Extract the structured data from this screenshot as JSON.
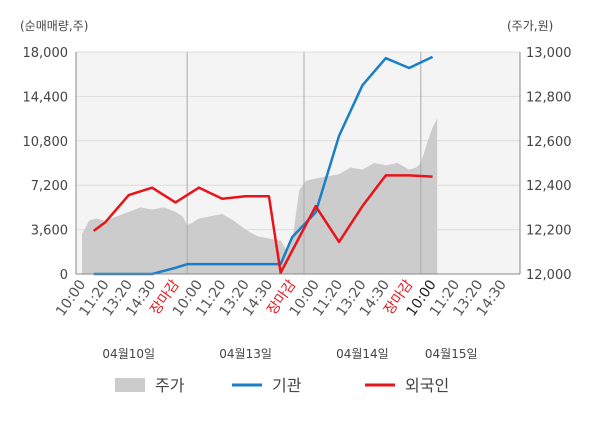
{
  "chart_data": {
    "type": "line",
    "left_axis": {
      "unit_label": "(순매매량,주)",
      "ylim": [
        0,
        18000
      ],
      "ticks": [
        0,
        3600,
        7200,
        10800,
        14400,
        18000
      ],
      "tick_labels": [
        "0",
        "3,600",
        "7,200",
        "10,800",
        "14,400",
        "18,000"
      ]
    },
    "right_axis": {
      "unit_label": "(주가,원)",
      "ylim": [
        12000,
        13000
      ],
      "ticks": [
        12000,
        12200,
        12400,
        12600,
        12800,
        13000
      ],
      "tick_labels": [
        "12,000",
        "12,200",
        "12,400",
        "12,600",
        "12,800",
        "13,000"
      ]
    },
    "x_tick_labels": [
      {
        "text": "10:00",
        "style": "normal"
      },
      {
        "text": "11:20",
        "style": "normal"
      },
      {
        "text": "13:20",
        "style": "normal"
      },
      {
        "text": "14:30",
        "style": "normal"
      },
      {
        "text": "장마감",
        "style": "red"
      },
      {
        "text": "10:00",
        "style": "normal"
      },
      {
        "text": "11:20",
        "style": "normal"
      },
      {
        "text": "13:20",
        "style": "normal"
      },
      {
        "text": "14:30",
        "style": "normal"
      },
      {
        "text": "장마감",
        "style": "red"
      },
      {
        "text": "10:00",
        "style": "normal"
      },
      {
        "text": "11:20",
        "style": "normal"
      },
      {
        "text": "13:20",
        "style": "normal"
      },
      {
        "text": "14:30",
        "style": "normal"
      },
      {
        "text": "장마감",
        "style": "red"
      },
      {
        "text": "10:00",
        "style": "dark"
      },
      {
        "text": "11:20",
        "style": "normal"
      },
      {
        "text": "13:20",
        "style": "normal"
      },
      {
        "text": "14:30",
        "style": "normal"
      }
    ],
    "date_labels": [
      {
        "text": "04월10일",
        "at_tick": 2
      },
      {
        "text": "04월13일",
        "at_tick": 7
      },
      {
        "text": "04월14일",
        "at_tick": 12
      },
      {
        "text": "04월15일",
        "at_tick": 15.8
      }
    ],
    "day_boundaries_at_tick": [
      4.5,
      9.5,
      14.5
    ],
    "series": [
      {
        "name": "기관",
        "axis": "left",
        "color": "#1a7fc6",
        "points": [
          [
            0.5,
            0
          ],
          [
            1,
            0
          ],
          [
            2,
            0
          ],
          [
            3,
            0
          ],
          [
            4,
            500
          ],
          [
            4.5,
            800
          ],
          [
            5,
            800
          ],
          [
            6,
            800
          ],
          [
            7,
            800
          ],
          [
            8,
            800
          ],
          [
            8.5,
            800
          ],
          [
            9,
            3000
          ],
          [
            10,
            5000
          ],
          [
            11,
            11200
          ],
          [
            12,
            15300
          ],
          [
            13,
            17500
          ],
          [
            14,
            16700
          ],
          [
            15,
            17600
          ]
        ]
      },
      {
        "name": "외국인",
        "axis": "left",
        "color": "#e8141b",
        "points": [
          [
            0.5,
            3500
          ],
          [
            1,
            4200
          ],
          [
            2,
            6400
          ],
          [
            3,
            7000
          ],
          [
            4,
            5800
          ],
          [
            5,
            7000
          ],
          [
            6,
            6100
          ],
          [
            7,
            6300
          ],
          [
            8,
            6300
          ],
          [
            8.5,
            100
          ],
          [
            10,
            5500
          ],
          [
            11,
            2600
          ],
          [
            12,
            5500
          ],
          [
            13,
            8000
          ],
          [
            14,
            8000
          ],
          [
            15,
            7900
          ]
        ]
      },
      {
        "name": "주가",
        "axis": "right",
        "type": "area",
        "color": "#cccccc",
        "points": [
          [
            0,
            12180
          ],
          [
            0.3,
            12240
          ],
          [
            0.6,
            12250
          ],
          [
            1,
            12240
          ],
          [
            1.5,
            12260
          ],
          [
            2,
            12280
          ],
          [
            2.5,
            12300
          ],
          [
            3,
            12290
          ],
          [
            3.5,
            12300
          ],
          [
            4,
            12280
          ],
          [
            4.3,
            12260
          ],
          [
            4.5,
            12220
          ],
          [
            4.7,
            12230
          ],
          [
            5,
            12250
          ],
          [
            5.5,
            12260
          ],
          [
            6,
            12270
          ],
          [
            6.5,
            12240
          ],
          [
            7,
            12200
          ],
          [
            7.5,
            12170
          ],
          [
            8,
            12160
          ],
          [
            8.5,
            12150
          ],
          [
            8.8,
            12100
          ],
          [
            9,
            12150
          ],
          [
            9.3,
            12380
          ],
          [
            9.6,
            12420
          ],
          [
            10,
            12430
          ],
          [
            10.5,
            12440
          ],
          [
            11,
            12450
          ],
          [
            11.5,
            12480
          ],
          [
            12,
            12470
          ],
          [
            12.5,
            12500
          ],
          [
            13,
            12490
          ],
          [
            13.5,
            12500
          ],
          [
            14,
            12470
          ],
          [
            14.3,
            12480
          ],
          [
            14.5,
            12500
          ],
          [
            14.8,
            12600
          ],
          [
            15,
            12660
          ],
          [
            15.2,
            12700
          ]
        ]
      }
    ],
    "legend": [
      {
        "label": "주가",
        "color": "#cccccc",
        "kind": "area"
      },
      {
        "label": "기관",
        "color": "#1a7fc6",
        "kind": "line"
      },
      {
        "label": "외국인",
        "color": "#e8141b",
        "kind": "line"
      }
    ],
    "grid": true,
    "legend_position": "bottom"
  }
}
